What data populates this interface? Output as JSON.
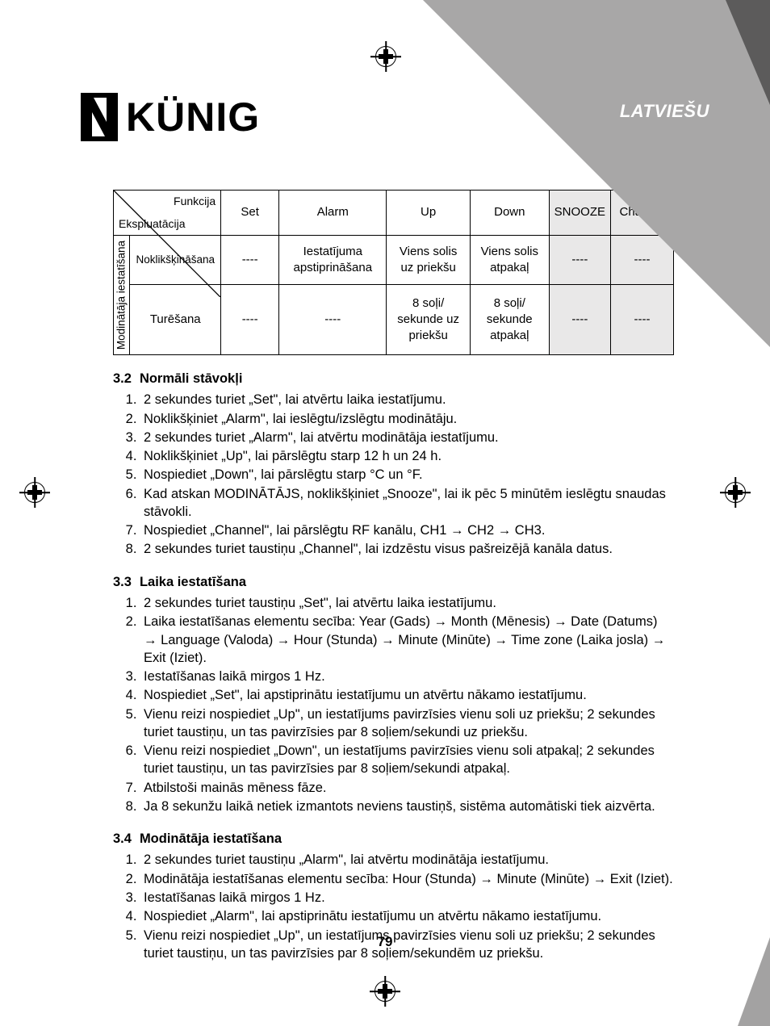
{
  "language_label": "LATVIEŠU",
  "logo_text": "KÜNIG",
  "page_number": "79",
  "table": {
    "diag_top": "Funkcija",
    "diag_bot": "Ekspluatācija",
    "headers": [
      "Set",
      "Alarm",
      "Up",
      "Down",
      "SNOOZE",
      "Channel"
    ],
    "row_group_label": "Modinātāja iestatīšana",
    "rows": [
      {
        "label": "Noklikšķināšana",
        "cells": [
          "----",
          "Iestatījuma apstiprināšana",
          "Viens solis uz priekšu",
          "Viens solis atpakaļ",
          "----",
          "----"
        ]
      },
      {
        "label": "Turēšana",
        "cells": [
          "----",
          "----",
          "8 soļi/ sekunde uz priekšu",
          "8 soļi/ sekunde atpakaļ",
          "----",
          "----"
        ]
      }
    ]
  },
  "sections": [
    {
      "num": "3.2",
      "title": "Normāli stāvokļi",
      "items": [
        "2 sekundes turiet „Set\", lai atvērtu laika iestatījumu.",
        "Noklikšķiniet „Alarm\", lai ieslēgtu/izslēgtu modinātāju.",
        "2 sekundes turiet „Alarm\", lai atvērtu modinātāja iestatījumu.",
        "Noklikšķiniet „Up\", lai pārslēgtu starp 12 h un 24 h.",
        "Nospiediet „Down\", lai pārslēgtu starp °C un °F.",
        "Kad atskan MODINĀTĀJS, noklikšķiniet „Snooze\", lai ik pēc 5 minūtēm ieslēgtu snaudas stāvokli.",
        "Nospiediet „Channel\", lai pārslēgtu RF kanālu, CH1 → CH2 → CH3.",
        "2 sekundes turiet taustiņu „Channel\", lai izdzēstu visus pašreizējā kanāla datus."
      ]
    },
    {
      "num": "3.3",
      "title": "Laika iestatīšana",
      "items": [
        "2 sekundes turiet taustiņu „Set\", lai atvērtu laika iestatījumu.",
        "Laika iestatīšanas elementu secība: Year (Gads) → Month (Mēnesis) → Date (Datums) → Language (Valoda) → Hour (Stunda) → Minute (Minūte) → Time zone (Laika josla) → Exit (Iziet).",
        "Iestatīšanas laikā mirgos 1 Hz.",
        "Nospiediet „Set\", lai apstiprinātu iestatījumu un atvērtu nākamo iestatījumu.",
        "Vienu reizi nospiediet „Up\", un iestatījums pavirzīsies vienu soli uz priekšu; 2 sekundes turiet taustiņu, un tas pavirzīsies par 8 soļiem/sekundi uz priekšu.",
        "Vienu reizi nospiediet „Down\", un iestatījums pavirzīsies vienu soli atpakaļ; 2 sekundes turiet taustiņu, un tas pavirzīsies par 8 soļiem/sekundi atpakaļ.",
        "Atbilstoši mainās mēness fāze.",
        "Ja 8 sekunžu laikā netiek izmantots neviens taustiņš, sistēma automātiski tiek aizvērta."
      ]
    },
    {
      "num": "3.4",
      "title": "Modinātāja iestatīšana",
      "items": [
        "2 sekundes turiet taustiņu „Alarm\", lai atvērtu modinātāja iestatījumu.",
        "Modinātāja iestatīšanas elementu secība: Hour (Stunda) → Minute (Minūte) → Exit (Iziet).",
        "Iestatīšanas laikā mirgos 1 Hz.",
        "Nospiediet „Alarm\", lai apstiprinātu iestatījumu un atvērtu nākamo iestatījumu.",
        "Vienu reizi nospiediet „Up\", un iestatījums pavirzīsies vienu soli uz priekšu; 2 sekundes turiet taustiņu, un tas pavirzīsies par 8 soļiem/sekundēm uz priekšu."
      ]
    }
  ],
  "colors": {
    "triangle_light": "#a8a7a7",
    "triangle_dark": "#5c5b5b",
    "shade": "#e9e8e8"
  }
}
